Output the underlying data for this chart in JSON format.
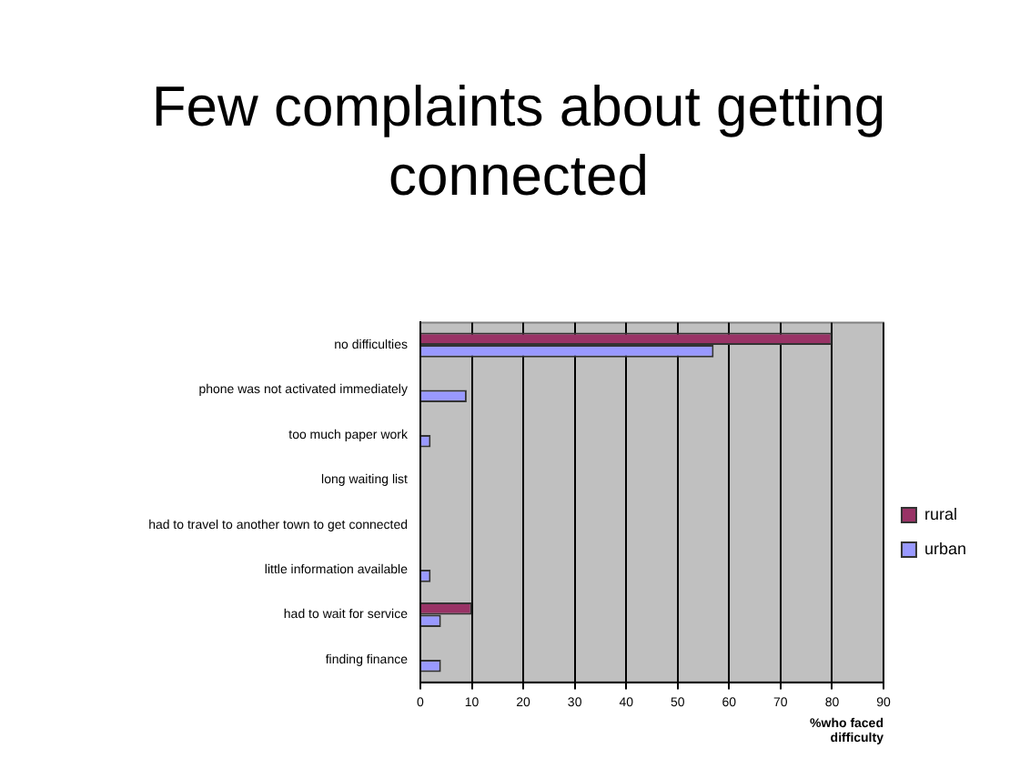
{
  "chart_data": {
    "type": "bar",
    "orientation": "horizontal",
    "title": "Few complaints about getting connected",
    "xlabel": "%who faced difficulty",
    "categories": [
      "no difficulties",
      "phone was not activated immediately",
      "too much paper work",
      "long waiting list",
      "had to travel to another town to get connected",
      "little information available",
      "had to wait for service",
      "finding finance"
    ],
    "series": [
      {
        "name": "rural",
        "color": "#993366",
        "values": [
          80,
          0,
          0,
          0,
          0,
          0,
          10,
          0
        ]
      },
      {
        "name": "urban",
        "color": "#9999ff",
        "values": [
          57,
          9,
          2,
          0,
          0,
          2,
          4,
          4
        ]
      }
    ],
    "xlim": [
      0,
      90
    ],
    "xticks": [
      0,
      10,
      20,
      30,
      40,
      50,
      60,
      70,
      80,
      90
    ],
    "grid": "x",
    "legend": "right"
  }
}
